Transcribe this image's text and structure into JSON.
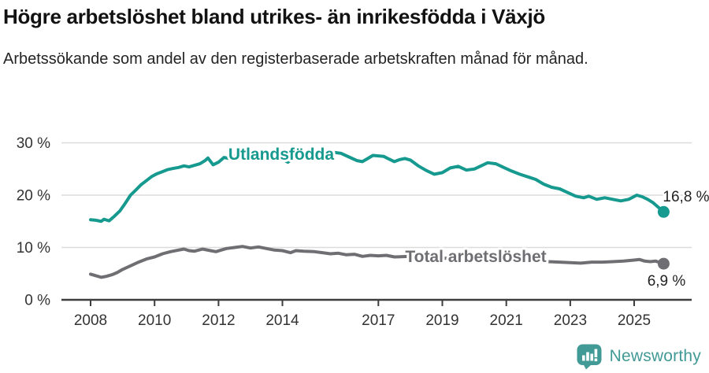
{
  "header": {
    "title": "Högre arbetslöshet bland utrikes- än inrikesfödda i Växjö",
    "subtitle": "Arbetssökande som andel av den registerbaserade arbetskraften månad för månad."
  },
  "footer": {
    "brand": "Newsworthy",
    "logo_icon": "newsworthy-speech-bubble-bar-chart-icon"
  },
  "colors": {
    "utlandsfodda": "#16998E",
    "total": "#6F6E73",
    "grid": "#DCDCDC",
    "axis": "#3D3D3D",
    "tick_text": "#333333",
    "annotation_text": "#222222",
    "brand_teal": "#429A96"
  },
  "chart_data": {
    "type": "line",
    "title": "Högre arbetslöshet bland utrikes- än inrikesfödda i Växjö",
    "subtitle": "Arbetssökande som andel av den registerbaserade arbetskraften månad för månad.",
    "xlabel": "",
    "ylabel": "",
    "grid": "horizontal",
    "legend_position": "inline-on-lines",
    "xlim": [
      2007.1,
      2026.8
    ],
    "ylim": [
      0,
      30
    ],
    "x_ticks": [
      2008,
      2010,
      2012,
      2014,
      2017,
      2019,
      2021,
      2023,
      2025
    ],
    "y_ticks": [
      {
        "value": 0,
        "label": "0 %"
      },
      {
        "value": 10,
        "label": "10 %"
      },
      {
        "value": 20,
        "label": "20 %"
      },
      {
        "value": 30,
        "label": "30 %"
      }
    ],
    "series": [
      {
        "id": "utlandsfodda",
        "name": "Utlandsfödda",
        "color": "#16998E",
        "end_label": "16,8 %",
        "points": [
          [
            2008.0,
            15.3
          ],
          [
            2008.17,
            15.2
          ],
          [
            2008.33,
            15.0
          ],
          [
            2008.42,
            15.4
          ],
          [
            2008.58,
            15.1
          ],
          [
            2008.75,
            16.0
          ],
          [
            2008.92,
            17.0
          ],
          [
            2009.08,
            18.4
          ],
          [
            2009.25,
            20.0
          ],
          [
            2009.42,
            21.0
          ],
          [
            2009.58,
            22.0
          ],
          [
            2009.75,
            22.8
          ],
          [
            2009.92,
            23.6
          ],
          [
            2010.08,
            24.1
          ],
          [
            2010.25,
            24.5
          ],
          [
            2010.42,
            24.9
          ],
          [
            2010.58,
            25.1
          ],
          [
            2010.75,
            25.3
          ],
          [
            2010.92,
            25.6
          ],
          [
            2011.08,
            25.4
          ],
          [
            2011.25,
            25.7
          ],
          [
            2011.42,
            26.0
          ],
          [
            2011.58,
            26.6
          ],
          [
            2011.67,
            27.1
          ],
          [
            2011.83,
            25.8
          ],
          [
            2012.0,
            26.3
          ],
          [
            2012.17,
            27.2
          ],
          [
            2012.33,
            27.0
          ],
          [
            2012.5,
            27.4
          ],
          [
            2012.67,
            27.1
          ],
          [
            2012.83,
            27.5
          ],
          [
            2013.0,
            27.4
          ],
          [
            2013.25,
            27.7
          ],
          [
            2013.5,
            27.9
          ],
          [
            2013.75,
            27.3
          ],
          [
            2014.0,
            26.9
          ],
          [
            2014.17,
            26.3
          ],
          [
            2014.33,
            27.0
          ],
          [
            2014.5,
            27.4
          ],
          [
            2014.75,
            27.7
          ],
          [
            2015.0,
            27.9
          ],
          [
            2015.17,
            28.1
          ],
          [
            2015.42,
            27.9
          ],
          [
            2015.58,
            28.2
          ],
          [
            2015.83,
            28.0
          ],
          [
            2016.08,
            27.3
          ],
          [
            2016.33,
            26.6
          ],
          [
            2016.5,
            26.4
          ],
          [
            2016.67,
            27.0
          ],
          [
            2016.83,
            27.6
          ],
          [
            2017.0,
            27.5
          ],
          [
            2017.17,
            27.4
          ],
          [
            2017.33,
            26.9
          ],
          [
            2017.5,
            26.4
          ],
          [
            2017.67,
            26.8
          ],
          [
            2017.83,
            27.0
          ],
          [
            2018.0,
            26.7
          ],
          [
            2018.25,
            25.6
          ],
          [
            2018.5,
            24.7
          ],
          [
            2018.75,
            24.0
          ],
          [
            2019.0,
            24.3
          ],
          [
            2019.25,
            25.2
          ],
          [
            2019.5,
            25.5
          ],
          [
            2019.75,
            24.8
          ],
          [
            2020.0,
            25.0
          ],
          [
            2020.25,
            25.7
          ],
          [
            2020.42,
            26.2
          ],
          [
            2020.67,
            26.0
          ],
          [
            2020.92,
            25.3
          ],
          [
            2021.17,
            24.6
          ],
          [
            2021.42,
            24.0
          ],
          [
            2021.67,
            23.5
          ],
          [
            2021.92,
            23.0
          ],
          [
            2022.17,
            22.1
          ],
          [
            2022.42,
            21.5
          ],
          [
            2022.67,
            21.2
          ],
          [
            2022.92,
            20.5
          ],
          [
            2023.17,
            19.8
          ],
          [
            2023.42,
            19.5
          ],
          [
            2023.58,
            19.8
          ],
          [
            2023.83,
            19.2
          ],
          [
            2024.08,
            19.5
          ],
          [
            2024.33,
            19.2
          ],
          [
            2024.58,
            18.9
          ],
          [
            2024.83,
            19.2
          ],
          [
            2025.08,
            20.0
          ],
          [
            2025.25,
            19.7
          ],
          [
            2025.42,
            19.2
          ],
          [
            2025.58,
            18.6
          ],
          [
            2025.75,
            17.7
          ],
          [
            2025.92,
            16.8
          ]
        ]
      },
      {
        "id": "total-arbetsloshet",
        "name": "Total arbetslöshet",
        "color": "#6F6E73",
        "end_label": "6,9 %",
        "points": [
          [
            2008.0,
            4.9
          ],
          [
            2008.17,
            4.6
          ],
          [
            2008.33,
            4.3
          ],
          [
            2008.5,
            4.5
          ],
          [
            2008.67,
            4.8
          ],
          [
            2008.83,
            5.2
          ],
          [
            2009.0,
            5.8
          ],
          [
            2009.25,
            6.5
          ],
          [
            2009.5,
            7.2
          ],
          [
            2009.75,
            7.8
          ],
          [
            2010.0,
            8.2
          ],
          [
            2010.25,
            8.8
          ],
          [
            2010.5,
            9.2
          ],
          [
            2010.75,
            9.5
          ],
          [
            2010.92,
            9.7
          ],
          [
            2011.08,
            9.4
          ],
          [
            2011.25,
            9.3
          ],
          [
            2011.5,
            9.7
          ],
          [
            2011.75,
            9.4
          ],
          [
            2011.92,
            9.2
          ],
          [
            2012.08,
            9.5
          ],
          [
            2012.25,
            9.8
          ],
          [
            2012.5,
            10.0
          ],
          [
            2012.75,
            10.2
          ],
          [
            2013.0,
            9.9
          ],
          [
            2013.25,
            10.1
          ],
          [
            2013.5,
            9.8
          ],
          [
            2013.75,
            9.5
          ],
          [
            2014.0,
            9.4
          ],
          [
            2014.25,
            9.0
          ],
          [
            2014.42,
            9.4
          ],
          [
            2014.67,
            9.3
          ],
          [
            2015.0,
            9.2
          ],
          [
            2015.25,
            9.0
          ],
          [
            2015.5,
            8.8
          ],
          [
            2015.75,
            8.9
          ],
          [
            2016.0,
            8.6
          ],
          [
            2016.25,
            8.7
          ],
          [
            2016.5,
            8.3
          ],
          [
            2016.75,
            8.5
          ],
          [
            2017.0,
            8.4
          ],
          [
            2017.25,
            8.5
          ],
          [
            2017.5,
            8.2
          ],
          [
            2018.0,
            8.3
          ],
          [
            2018.5,
            8.0
          ],
          [
            2019.0,
            7.9
          ],
          [
            2019.5,
            8.1
          ],
          [
            2020.0,
            8.0
          ],
          [
            2020.5,
            8.8
          ],
          [
            2021.0,
            8.5
          ],
          [
            2021.5,
            8.0
          ],
          [
            2022.0,
            7.5
          ],
          [
            2022.33,
            7.3
          ],
          [
            2022.67,
            7.2
          ],
          [
            2023.0,
            7.1
          ],
          [
            2023.33,
            7.0
          ],
          [
            2023.67,
            7.2
          ],
          [
            2024.0,
            7.2
          ],
          [
            2024.33,
            7.3
          ],
          [
            2024.67,
            7.4
          ],
          [
            2025.0,
            7.6
          ],
          [
            2025.17,
            7.7
          ],
          [
            2025.33,
            7.4
          ],
          [
            2025.5,
            7.3
          ],
          [
            2025.67,
            7.4
          ],
          [
            2025.92,
            6.9
          ]
        ]
      }
    ]
  }
}
